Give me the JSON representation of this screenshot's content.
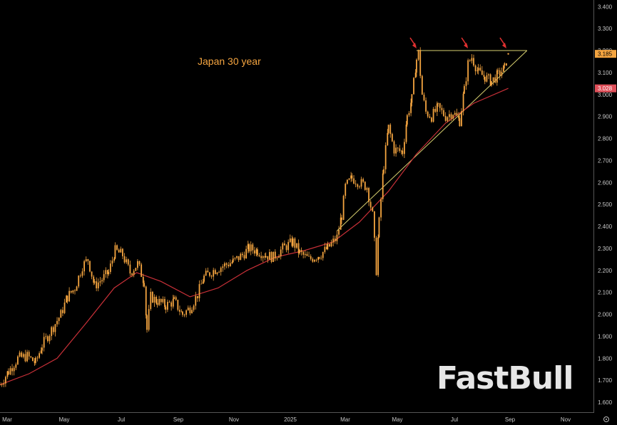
{
  "chart_data": {
    "type": "line",
    "title": "Japan 30 year",
    "watermark": "FastBull",
    "x_ticks": [
      "Mar",
      "May",
      "Jul",
      "Sep",
      "Nov",
      "2025",
      "Mar",
      "May",
      "Jul",
      "Sep",
      "Nov"
    ],
    "y_ticks": [
      "1.600",
      "1.700",
      "1.800",
      "1.900",
      "2.000",
      "2.100",
      "2.200",
      "2.300",
      "2.400",
      "2.500",
      "2.600",
      "2.700",
      "2.800",
      "2.900",
      "3.000",
      "3.100",
      "3.200",
      "3.300",
      "3.400"
    ],
    "ylim": [
      1.555,
      3.43
    ],
    "xlim": [
      "2024-03-01",
      "2025-11-25"
    ],
    "grid": false,
    "series": [
      {
        "color": "#f5a540",
        "style": "candles",
        "points": [
          [
            "2024-03-01",
            1.68
          ],
          [
            "2024-03-10",
            1.74
          ],
          [
            "2024-03-20",
            1.8
          ],
          [
            "2024-03-30",
            1.81
          ],
          [
            "2024-04-08",
            1.78
          ],
          [
            "2024-04-15",
            1.86
          ],
          [
            "2024-04-25",
            1.93
          ],
          [
            "2024-05-05",
            2.0
          ],
          [
            "2024-05-12",
            2.08
          ],
          [
            "2024-05-20",
            2.12
          ],
          [
            "2024-05-28",
            2.22
          ],
          [
            "2024-06-03",
            2.25
          ],
          [
            "2024-06-10",
            2.13
          ],
          [
            "2024-06-18",
            2.16
          ],
          [
            "2024-06-25",
            2.19
          ],
          [
            "2024-07-02",
            2.29
          ],
          [
            "2024-07-10",
            2.27
          ],
          [
            "2024-07-18",
            2.19
          ],
          [
            "2024-07-26",
            2.23
          ],
          [
            "2024-08-02",
            2.15
          ],
          [
            "2024-08-05",
            1.93
          ],
          [
            "2024-08-09",
            2.08
          ],
          [
            "2024-08-16",
            2.06
          ],
          [
            "2024-08-25",
            2.04
          ],
          [
            "2024-09-03",
            2.06
          ],
          [
            "2024-09-12",
            2.0
          ],
          [
            "2024-09-20",
            2.03
          ],
          [
            "2024-09-28",
            2.09
          ],
          [
            "2024-10-05",
            2.17
          ],
          [
            "2024-10-15",
            2.2
          ],
          [
            "2024-10-25",
            2.22
          ],
          [
            "2024-11-05",
            2.24
          ],
          [
            "2024-11-15",
            2.27
          ],
          [
            "2024-11-22",
            2.3
          ],
          [
            "2024-12-01",
            2.29
          ],
          [
            "2024-12-10",
            2.27
          ],
          [
            "2024-12-18",
            2.26
          ],
          [
            "2024-12-28",
            2.3
          ],
          [
            "2025-01-08",
            2.33
          ],
          [
            "2025-01-15",
            2.28
          ],
          [
            "2025-01-25",
            2.25
          ],
          [
            "2025-02-05",
            2.27
          ],
          [
            "2025-02-14",
            2.3
          ],
          [
            "2025-02-24",
            2.35
          ],
          [
            "2025-03-01",
            2.45
          ],
          [
            "2025-03-05",
            2.58
          ],
          [
            "2025-03-12",
            2.62
          ],
          [
            "2025-03-20",
            2.6
          ],
          [
            "2025-03-28",
            2.58
          ],
          [
            "2025-04-03",
            2.45
          ],
          [
            "2025-04-07",
            2.2
          ],
          [
            "2025-04-10",
            2.42
          ],
          [
            "2025-04-15",
            2.68
          ],
          [
            "2025-04-20",
            2.85
          ],
          [
            "2025-04-26",
            2.75
          ],
          [
            "2025-05-05",
            2.74
          ],
          [
            "2025-05-10",
            2.9
          ],
          [
            "2025-05-15",
            2.98
          ],
          [
            "2025-05-20",
            3.16
          ],
          [
            "2025-05-22",
            3.19
          ],
          [
            "2025-05-26",
            3.0
          ],
          [
            "2025-05-30",
            2.92
          ],
          [
            "2025-06-05",
            2.9
          ],
          [
            "2025-06-12",
            2.94
          ],
          [
            "2025-06-20",
            2.9
          ],
          [
            "2025-06-28",
            2.92
          ],
          [
            "2025-07-05",
            2.88
          ],
          [
            "2025-07-10",
            3.02
          ],
          [
            "2025-07-14",
            3.14
          ],
          [
            "2025-07-18",
            3.17
          ],
          [
            "2025-07-25",
            3.1
          ],
          [
            "2025-08-01",
            3.08
          ],
          [
            "2025-08-08",
            3.06
          ],
          [
            "2025-08-15",
            3.09
          ],
          [
            "2025-08-22",
            3.12
          ],
          [
            "2025-08-26",
            3.185
          ]
        ]
      },
      {
        "color": "#c83038",
        "style": "line",
        "points": [
          [
            "2024-03-01",
            1.68
          ],
          [
            "2024-04-01",
            1.73
          ],
          [
            "2024-05-01",
            1.8
          ],
          [
            "2024-06-01",
            1.96
          ],
          [
            "2024-07-01",
            2.12
          ],
          [
            "2024-07-25",
            2.19
          ],
          [
            "2024-08-20",
            2.15
          ],
          [
            "2024-09-20",
            2.08
          ],
          [
            "2024-10-20",
            2.12
          ],
          [
            "2024-11-20",
            2.2
          ],
          [
            "2024-12-20",
            2.26
          ],
          [
            "2025-01-20",
            2.29
          ],
          [
            "2025-02-20",
            2.33
          ],
          [
            "2025-03-20",
            2.42
          ],
          [
            "2025-04-20",
            2.56
          ],
          [
            "2025-05-20",
            2.73
          ],
          [
            "2025-06-20",
            2.87
          ],
          [
            "2025-07-20",
            2.96
          ],
          [
            "2025-08-26",
            3.028
          ]
        ]
      }
    ],
    "annotations": [
      {
        "type": "line",
        "color": "#d8d070",
        "from": [
          "2025-05-20",
          3.2
        ],
        "to": [
          "2025-09-15",
          3.2
        ]
      },
      {
        "type": "line",
        "color": "#d8d070",
        "from": [
          "2025-02-24",
          2.38
        ],
        "to": [
          "2025-09-15",
          3.2
        ]
      },
      {
        "type": "arrow",
        "color": "#e03030",
        "at": [
          "2025-05-20",
          3.2
        ]
      },
      {
        "type": "arrow",
        "color": "#e03030",
        "at": [
          "2025-07-14",
          3.2
        ]
      },
      {
        "type": "arrow",
        "color": "#e03030",
        "at": [
          "2025-08-24",
          3.2
        ]
      }
    ],
    "price_tags": [
      {
        "label": "3.185",
        "value": 3.185,
        "bg": "#f5a540",
        "text": "dark"
      },
      {
        "label": "3.028",
        "value": 3.028,
        "bg": "#e0505a",
        "text": "light"
      }
    ]
  }
}
